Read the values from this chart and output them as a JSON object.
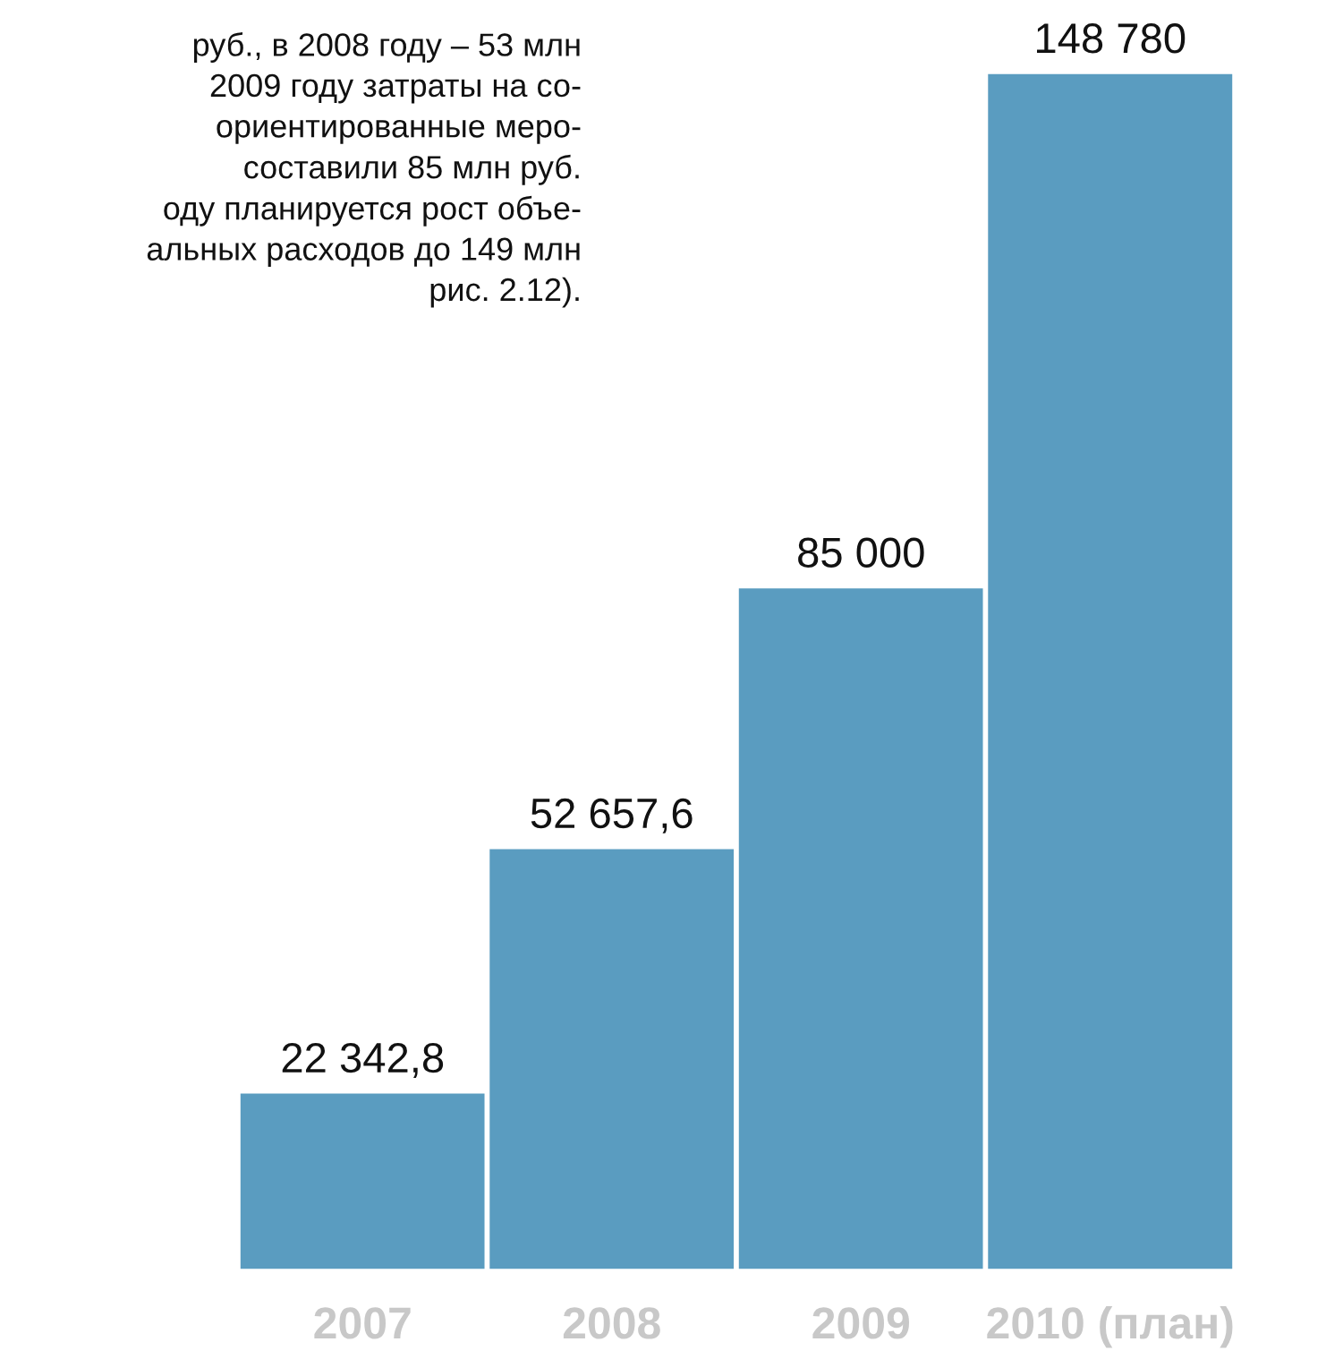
{
  "chart_data": {
    "type": "bar",
    "categories": [
      "2007",
      "2008",
      "2009",
      "2010 (план)"
    ],
    "series": [
      {
        "color": "#5a9cc0",
        "values": [
          22342.8,
          52657.6,
          85000,
          148780
        ],
        "value_labels": [
          "22 342,8",
          "52 657,6",
          "85 000",
          "148 780"
        ]
      }
    ],
    "annotations": [
      "руб., в 2008 году – 53 млн\n2009 году затраты на со-\nориентированные меро-\nсоставили 85 млн руб.\nоду планируется рост объе-\nальных расходов до 149 млн\nрис. 2.12)."
    ],
    "grid": false,
    "legend": false
  }
}
